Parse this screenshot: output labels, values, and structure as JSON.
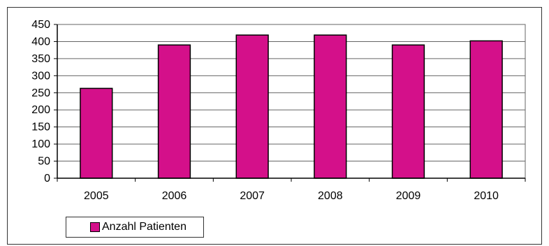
{
  "chart_data": {
    "type": "bar",
    "categories": [
      "2005",
      "2006",
      "2007",
      "2008",
      "2009",
      "2010"
    ],
    "series": [
      {
        "name": "Anzahl Patienten",
        "values": [
          263,
          390,
          419,
          419,
          390,
          402
        ]
      }
    ],
    "ylim": [
      0,
      450
    ],
    "yticks": [
      0,
      50,
      100,
      150,
      200,
      250,
      300,
      350,
      400,
      450
    ],
    "grid": true,
    "legend": "bottom-left",
    "bar_color": "#D4108A"
  }
}
